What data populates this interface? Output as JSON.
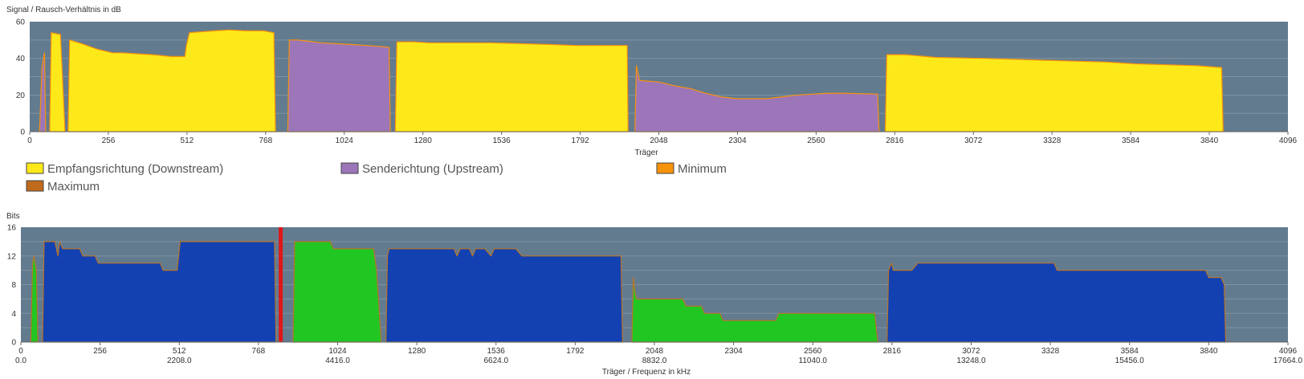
{
  "colors": {
    "plot_bg": "#637b8f",
    "downstream": "#fde91a",
    "upstream": "#9c76b9",
    "minimum": "#f7920b",
    "maximum": "#c06a1c",
    "bits_downstream": "#1341b2",
    "bits_upstream": "#22c622",
    "bits_edge": "#b87428",
    "pilot_marker": "#e01818",
    "grid": "#8093a3"
  },
  "legend": [
    {
      "label": "Empfangsrichtung (Downstream)",
      "color": "#fde91a"
    },
    {
      "label": "Senderichtung (Upstream)",
      "color": "#9c76b9"
    },
    {
      "label": "Minimum",
      "color": "#f7920b"
    },
    {
      "label": "Maximum",
      "color": "#c06a1c"
    }
  ],
  "chart_data": [
    {
      "type": "area",
      "title": "Signal / Rausch-Verhältnis in dB",
      "xlabel": "Träger",
      "xlim": [
        0,
        4096
      ],
      "ylim": [
        0,
        60
      ],
      "xticks": [
        0,
        256,
        512,
        768,
        1024,
        1280,
        1536,
        1792,
        2048,
        2304,
        2560,
        2816,
        3072,
        3328,
        3584,
        3840,
        4096
      ],
      "xtick_labels": [
        "0",
        "256",
        "512",
        "768",
        "1024",
        "1280",
        "1536",
        "1792",
        "2048",
        "2304",
        "2560",
        "2816",
        "3072",
        "3328",
        "3584",
        "3840",
        "4096"
      ],
      "yticks": [
        0,
        20,
        40,
        60
      ],
      "ytick_labels": [
        "0",
        "20",
        "40",
        "60"
      ],
      "series": [
        {
          "name": "Senderichtung (Upstream)",
          "color": "#9c76b9",
          "segments": [
            [
              [
                32,
                0
              ],
              [
                40,
                35
              ],
              [
                48,
                43
              ],
              [
                52,
                0
              ]
            ],
            [
              [
                840,
                0
              ],
              [
                845,
                50
              ],
              [
                870,
                50
              ],
              [
                900,
                49.5
              ],
              [
                950,
                48.5
              ],
              [
                1000,
                48
              ],
              [
                1050,
                47.5
              ],
              [
                1100,
                47
              ],
              [
                1140,
                46.5
              ],
              [
                1170,
                46
              ],
              [
                1174,
                0
              ]
            ],
            [
              [
                1970,
                0
              ],
              [
                1975,
                36
              ],
              [
                1985,
                28
              ],
              [
                2050,
                27
              ],
              [
                2100,
                25
              ],
              [
                2150,
                23.5
              ],
              [
                2200,
                21
              ],
              [
                2250,
                19
              ],
              [
                2300,
                18
              ],
              [
                2400,
                18
              ],
              [
                2450,
                19
              ],
              [
                2500,
                20
              ],
              [
                2600,
                21
              ],
              [
                2650,
                21
              ],
              [
                2760,
                20.5
              ],
              [
                2765,
                0
              ]
            ]
          ]
        },
        {
          "name": "Empfangsrichtung (Downstream)",
          "color": "#fde91a",
          "segments": [
            [
              [
                65,
                0
              ],
              [
                70,
                54
              ],
              [
                100,
                53
              ],
              [
                115,
                0
              ]
            ],
            [
              [
                125,
                0
              ],
              [
                130,
                50
              ],
              [
                170,
                48
              ],
              [
                220,
                45
              ],
              [
                270,
                43
              ],
              [
                300,
                43
              ],
              [
                350,
                42.5
              ],
              [
                400,
                42
              ],
              [
                460,
                41
              ],
              [
                505,
                41
              ],
              [
                510,
                47
              ],
              [
                520,
                54
              ],
              [
                600,
                55
              ],
              [
                650,
                55.5
              ],
              [
                700,
                55
              ],
              [
                760,
                55
              ],
              [
                795,
                54
              ],
              [
                800,
                0
              ]
            ],
            [
              [
                1190,
                0
              ],
              [
                1195,
                49
              ],
              [
                1250,
                49
              ],
              [
                1300,
                48.5
              ],
              [
                1500,
                48.5
              ],
              [
                1600,
                48
              ],
              [
                1700,
                47.5
              ],
              [
                1780,
                47
              ],
              [
                1945,
                47
              ],
              [
                1948,
                0
              ]
            ],
            [
              [
                2785,
                0
              ],
              [
                2790,
                42
              ],
              [
                2850,
                42
              ],
              [
                2950,
                40.5
              ],
              [
                3100,
                40
              ],
              [
                3200,
                39.5
              ],
              [
                3300,
                39
              ],
              [
                3400,
                38.5
              ],
              [
                3500,
                38
              ],
              [
                3600,
                37
              ],
              [
                3700,
                36.5
              ],
              [
                3800,
                36
              ],
              [
                3880,
                35
              ],
              [
                3885,
                0
              ]
            ]
          ]
        }
      ]
    },
    {
      "type": "area",
      "title": "Bits",
      "xlabel": "Träger / Frequenz in kHz",
      "xlim": [
        0,
        4096
      ],
      "ylim": [
        0,
        16
      ],
      "xticks": [
        0,
        256,
        512,
        768,
        1024,
        1280,
        1536,
        1792,
        2048,
        2304,
        2560,
        2816,
        3072,
        3328,
        3584,
        3840,
        4096
      ],
      "xtick_labels": [
        "0",
        "256",
        "512",
        "768",
        "1024",
        "1280",
        "1536",
        "1792",
        "2048",
        "2304",
        "2560",
        "2816",
        "3072",
        "3328",
        "3584",
        "3840",
        "4096"
      ],
      "xtick_freq": [
        0,
        512,
        1024,
        1536,
        2048,
        2560,
        3072,
        3584,
        4096
      ],
      "xtick_freq_labels": [
        "0.0",
        "2208.0",
        "4416.0",
        "6624.0",
        "8832.0",
        "11040.0",
        "13248.0",
        "15456.0",
        "17664.0"
      ],
      "yticks": [
        0,
        4,
        8,
        12,
        16
      ],
      "ytick_labels": [
        "0",
        "4",
        "8",
        "12",
        "16"
      ],
      "marker_x": 840,
      "series": [
        {
          "name": "Senderichtung (Upstream)",
          "color": "#22c622",
          "segments": [
            [
              [
                32,
                0
              ],
              [
                38,
                11
              ],
              [
                42,
                12
              ],
              [
                50,
                10
              ],
              [
                55,
                0
              ]
            ],
            [
              [
                880,
                0
              ],
              [
                885,
                14
              ],
              [
                1000,
                14
              ],
              [
                1010,
                13
              ],
              [
                1140,
                13
              ],
              [
                1150,
                10
              ],
              [
                1165,
                0
              ]
            ],
            [
              [
                1975,
                0
              ],
              [
                1980,
                9
              ],
              [
                1985,
                7
              ],
              [
                1990,
                6
              ],
              [
                2140,
                6
              ],
              [
                2150,
                5
              ],
              [
                2200,
                5
              ],
              [
                2210,
                4
              ],
              [
                2260,
                4
              ],
              [
                2270,
                3
              ],
              [
                2440,
                3
              ],
              [
                2450,
                4
              ],
              [
                2570,
                4
              ],
              [
                2760,
                4
              ],
              [
                2770,
                0
              ]
            ]
          ]
        },
        {
          "name": "Empfangsrichtung (Downstream)",
          "color": "#1341b2",
          "segments": [
            [
              [
                70,
                0
              ],
              [
                75,
                14
              ],
              [
                110,
                14
              ],
              [
                120,
                12
              ],
              [
                125,
                14
              ],
              [
                135,
                13
              ],
              [
                190,
                13
              ],
              [
                200,
                12
              ],
              [
                240,
                12
              ],
              [
                250,
                11
              ],
              [
                450,
                11
              ],
              [
                460,
                10
              ],
              [
                505,
                10
              ],
              [
                515,
                14
              ],
              [
                820,
                14
              ],
              [
                825,
                0
              ]
            ],
            [
              [
                1180,
                0
              ],
              [
                1185,
                12
              ],
              [
                1190,
                13
              ],
              [
                1400,
                13
              ],
              [
                1410,
                12
              ],
              [
                1420,
                13
              ],
              [
                1450,
                13
              ],
              [
                1460,
                12
              ],
              [
                1470,
                13
              ],
              [
                1500,
                13
              ],
              [
                1520,
                12
              ],
              [
                1530,
                13
              ],
              [
                1600,
                13
              ],
              [
                1620,
                12
              ],
              [
                1940,
                12
              ],
              [
                1945,
                0
              ]
            ],
            [
              [
                2800,
                0
              ],
              [
                2805,
                10
              ],
              [
                2815,
                11
              ],
              [
                2820,
                10
              ],
              [
                2880,
                10
              ],
              [
                2900,
                11
              ],
              [
                3340,
                11
              ],
              [
                3350,
                10
              ],
              [
                3500,
                10
              ],
              [
                3830,
                10
              ],
              [
                3840,
                9
              ],
              [
                3880,
                9
              ],
              [
                3890,
                8
              ],
              [
                3895,
                0
              ]
            ]
          ]
        }
      ]
    }
  ]
}
